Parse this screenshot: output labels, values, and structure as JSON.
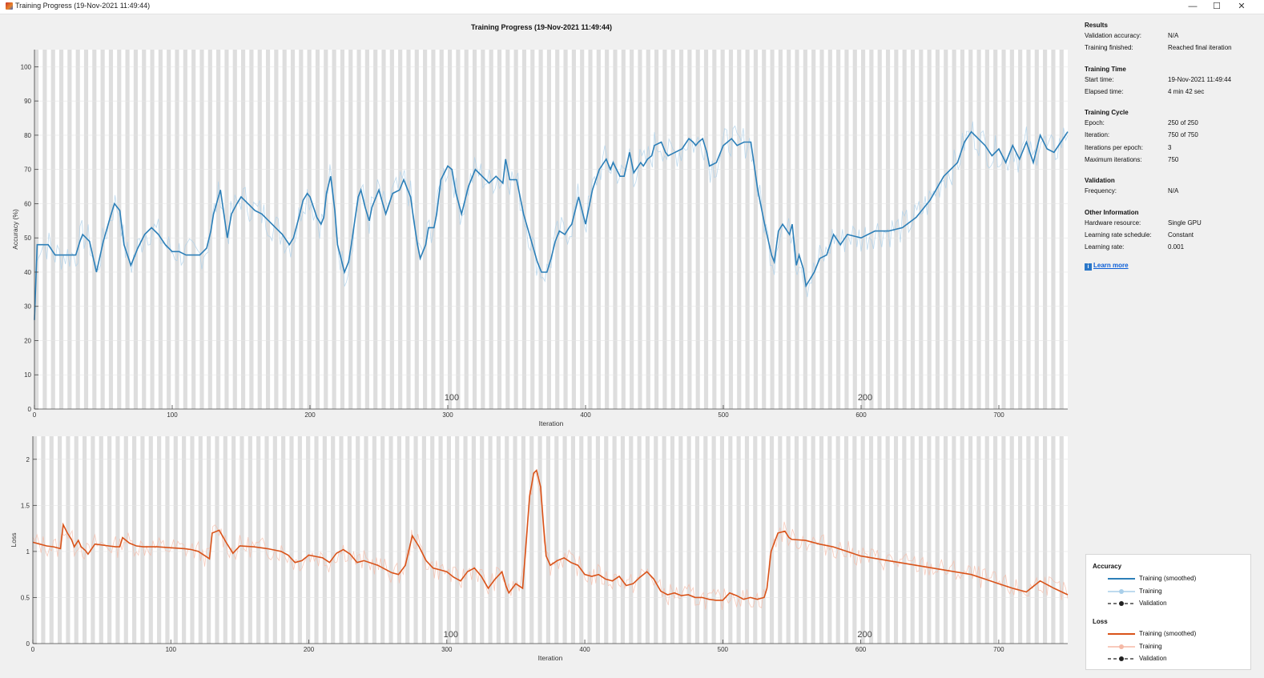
{
  "window": {
    "title": "Training Progress (19-Nov-2021 11:49:44)",
    "minimize_glyph": "—",
    "maximize_glyph": "☐",
    "close_glyph": "✕"
  },
  "plot_title": "Training Progress (19-Nov-2021 11:49:44)",
  "epoch_labels": [
    "100",
    "200"
  ],
  "info": {
    "results": {
      "heading": "Results",
      "validation_accuracy_label": "Validation accuracy:",
      "validation_accuracy": "N/A",
      "training_finished_label": "Training finished:",
      "training_finished": "Reached final iteration"
    },
    "time": {
      "heading": "Training Time",
      "start_label": "Start time:",
      "start": "19-Nov-2021 11:49:44",
      "elapsed_label": "Elapsed time:",
      "elapsed": "4 min 42 sec"
    },
    "cycle": {
      "heading": "Training Cycle",
      "epoch_label": "Epoch:",
      "epoch": "250 of 250",
      "iteration_label": "Iteration:",
      "iteration": "750 of 750",
      "ipe_label": "Iterations per epoch:",
      "ipe": "3",
      "max_label": "Maximum iterations:",
      "max": "750"
    },
    "validation": {
      "heading": "Validation",
      "frequency_label": "Frequency:",
      "frequency": "N/A"
    },
    "other": {
      "heading": "Other Information",
      "hardware_label": "Hardware resource:",
      "hardware": "Single GPU",
      "lr_schedule_label": "Learning rate schedule:",
      "lr_schedule": "Constant",
      "lr_label": "Learning rate:",
      "lr": "0.001"
    },
    "learn_more": "Learn more"
  },
  "legend": {
    "accuracy_heading": "Accuracy",
    "loss_heading": "Loss",
    "smoothed": "Training (smoothed)",
    "training": "Training",
    "validation": "Validation"
  },
  "colors": {
    "accuracy_smoothed": "#2c7fb8",
    "accuracy_raw": "#a9cfea",
    "loss_smoothed": "#d95319",
    "loss_raw": "#f5b9a6",
    "epoch_stripe": "#dedede",
    "plot_bg": "#ffffff"
  },
  "chart_data": [
    {
      "type": "line",
      "xlabel": "Iteration",
      "ylabel": "Accuracy (%)",
      "xlim": [
        0,
        750
      ],
      "ylim": [
        0,
        105
      ],
      "xticks": [
        0,
        100,
        200,
        300,
        400,
        500,
        600,
        700
      ],
      "yticks": [
        0,
        10,
        20,
        30,
        40,
        50,
        60,
        70,
        80,
        90,
        100
      ],
      "series": [
        {
          "name": "Training (smoothed)",
          "x": [
            0,
            2,
            5,
            10,
            15,
            20,
            25,
            30,
            33,
            35,
            40,
            45,
            50,
            55,
            58,
            62,
            65,
            70,
            75,
            80,
            85,
            90,
            95,
            100,
            105,
            110,
            115,
            120,
            125,
            128,
            130,
            135,
            140,
            143,
            147,
            150,
            155,
            160,
            165,
            170,
            175,
            180,
            185,
            188,
            192,
            195,
            198,
            200,
            205,
            208,
            210,
            212,
            215,
            218,
            220,
            225,
            228,
            230,
            235,
            237,
            240,
            243,
            245,
            250,
            255,
            260,
            265,
            268,
            270,
            273,
            275,
            278,
            280,
            284,
            286,
            290,
            292,
            295,
            300,
            303,
            306,
            310,
            315,
            318,
            320,
            325,
            330,
            335,
            340,
            342,
            345,
            350,
            355,
            360,
            365,
            368,
            372,
            375,
            378,
            381,
            385,
            388,
            390,
            395,
            400,
            405,
            410,
            415,
            418,
            420,
            425,
            428,
            432,
            435,
            440,
            442,
            445,
            448,
            450,
            455,
            458,
            460,
            465,
            470,
            475,
            478,
            480,
            482,
            485,
            488,
            490,
            495,
            500,
            503,
            506,
            510,
            515,
            518,
            520,
            525,
            530,
            535,
            537,
            540,
            543,
            548,
            550,
            553,
            555,
            558,
            560,
            563,
            566,
            570,
            575,
            580,
            585,
            590,
            600,
            610,
            620,
            630,
            640,
            650,
            660,
            670,
            675,
            680,
            685,
            690,
            695,
            700,
            705,
            710,
            715,
            720,
            725,
            730,
            735,
            740,
            745,
            750
          ],
          "y": [
            26,
            48,
            48,
            48,
            45,
            45,
            45,
            45,
            49,
            51,
            49,
            40,
            49,
            56,
            60,
            58,
            48,
            42,
            47,
            51,
            53,
            51,
            48,
            46,
            46,
            45,
            45,
            45,
            47,
            52,
            57,
            64,
            50,
            57,
            60,
            62,
            60,
            58,
            57,
            55,
            53,
            51,
            48,
            50,
            56,
            61,
            63,
            62,
            56,
            54,
            56,
            63,
            68,
            58,
            48,
            40,
            43,
            48,
            62,
            64,
            59,
            55,
            59,
            64,
            57,
            63,
            64,
            67,
            65,
            62,
            56,
            48,
            44,
            48,
            53,
            53,
            57,
            67,
            71,
            70,
            63,
            57,
            65,
            68,
            70,
            68,
            66,
            68,
            66,
            73,
            67,
            67,
            57,
            50,
            43,
            40,
            40,
            44,
            49,
            52,
            51,
            53,
            54,
            62,
            54,
            64,
            70,
            73,
            70,
            72,
            68,
            68,
            75,
            69,
            72,
            71,
            73,
            74,
            77,
            78,
            75,
            74,
            75,
            76,
            79,
            78,
            77,
            78,
            79,
            75,
            71,
            72,
            77,
            78,
            79,
            77,
            78,
            78,
            78,
            64,
            54,
            45,
            43,
            52,
            54,
            51,
            54,
            42,
            45,
            41,
            36,
            38,
            40,
            44,
            45,
            51,
            48,
            51,
            50,
            52,
            52,
            53,
            56,
            61,
            68,
            72,
            78,
            81,
            79,
            77,
            74,
            76,
            72,
            77,
            73,
            78,
            72,
            80,
            76,
            75,
            78,
            81
          ]
        }
      ]
    },
    {
      "type": "line",
      "xlabel": "Iteration",
      "ylabel": "Loss",
      "xlim": [
        0,
        750
      ],
      "ylim": [
        0,
        2.25
      ],
      "xticks": [
        0,
        100,
        200,
        300,
        400,
        500,
        600,
        700
      ],
      "yticks": [
        0,
        0.5,
        1,
        1.5,
        2
      ],
      "series": [
        {
          "name": "Training (smoothed)",
          "x": [
            0,
            5,
            10,
            15,
            20,
            22,
            25,
            28,
            30,
            33,
            35,
            38,
            40,
            45,
            50,
            55,
            60,
            63,
            65,
            70,
            75,
            80,
            90,
            100,
            110,
            115,
            120,
            125,
            128,
            130,
            135,
            140,
            145,
            150,
            160,
            170,
            180,
            185,
            190,
            195,
            200,
            210,
            215,
            220,
            225,
            230,
            235,
            240,
            250,
            260,
            265,
            270,
            275,
            280,
            285,
            290,
            295,
            300,
            305,
            310,
            315,
            320,
            325,
            330,
            335,
            340,
            343,
            345,
            350,
            355,
            360,
            363,
            365,
            368,
            370,
            372,
            375,
            380,
            385,
            390,
            395,
            400,
            405,
            410,
            415,
            420,
            425,
            430,
            435,
            440,
            445,
            450,
            455,
            460,
            465,
            470,
            475,
            480,
            485,
            490,
            495,
            500,
            505,
            510,
            515,
            520,
            525,
            530,
            532,
            535,
            540,
            545,
            548,
            550,
            560,
            570,
            580,
            590,
            600,
            620,
            640,
            660,
            680,
            690,
            700,
            710,
            720,
            730,
            740,
            750
          ],
          "y": [
            1.1,
            1.08,
            1.06,
            1.05,
            1.03,
            1.29,
            1.2,
            1.13,
            1.05,
            1.12,
            1.05,
            1.01,
            0.97,
            1.08,
            1.07,
            1.06,
            1.05,
            1.05,
            1.15,
            1.09,
            1.06,
            1.05,
            1.05,
            1.04,
            1.03,
            1.02,
            1.0,
            0.95,
            0.92,
            1.2,
            1.23,
            1.1,
            0.98,
            1.06,
            1.05,
            1.03,
            1.0,
            0.96,
            0.88,
            0.9,
            0.96,
            0.93,
            0.88,
            0.98,
            1.02,
            0.97,
            0.88,
            0.9,
            0.85,
            0.77,
            0.75,
            0.85,
            1.17,
            1.05,
            0.9,
            0.82,
            0.8,
            0.78,
            0.72,
            0.68,
            0.78,
            0.82,
            0.73,
            0.6,
            0.7,
            0.78,
            0.62,
            0.55,
            0.65,
            0.6,
            1.6,
            1.85,
            1.88,
            1.7,
            1.3,
            0.95,
            0.85,
            0.9,
            0.93,
            0.88,
            0.85,
            0.75,
            0.73,
            0.75,
            0.7,
            0.68,
            0.73,
            0.63,
            0.65,
            0.72,
            0.78,
            0.7,
            0.57,
            0.53,
            0.55,
            0.52,
            0.53,
            0.5,
            0.5,
            0.48,
            0.47,
            0.47,
            0.55,
            0.52,
            0.48,
            0.5,
            0.48,
            0.5,
            0.6,
            1.0,
            1.2,
            1.22,
            1.15,
            1.13,
            1.12,
            1.08,
            1.05,
            1.0,
            0.95,
            0.9,
            0.85,
            0.8,
            0.75,
            0.7,
            0.65,
            0.6,
            0.56,
            0.68,
            0.6,
            0.53
          ]
        }
      ]
    }
  ]
}
